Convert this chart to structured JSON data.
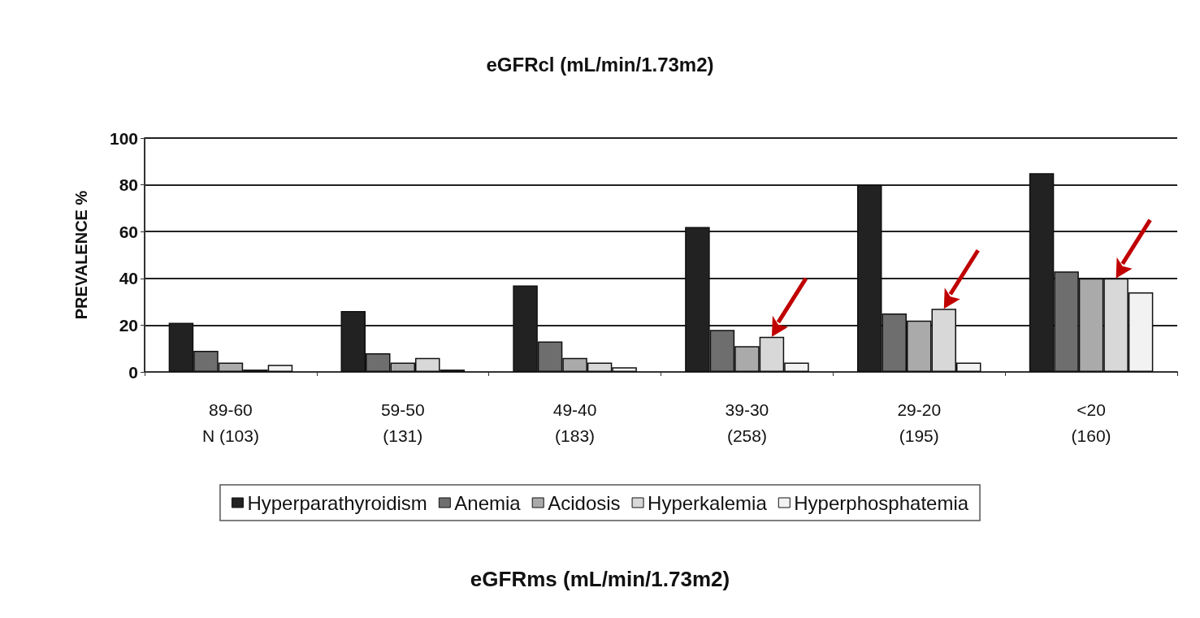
{
  "chart_data": {
    "type": "bar",
    "title": "eGFRcl (mL/min/1.73m2)",
    "annotations": [
      "eGFRms (mL/min/1.73m2)"
    ],
    "ylabel": "PREVALENCE %",
    "categories": [
      "89-60\nN (103)",
      "59-50\n(131)",
      "49-40\n(183)",
      "39-30\n(258)",
      "29-20\n(195)",
      "<20\n(160)"
    ],
    "series": [
      {
        "name": "Hyperparathyroidism",
        "color": "#222222",
        "values": [
          21,
          26,
          37,
          62,
          80,
          85
        ]
      },
      {
        "name": "Anemia",
        "color": "#6e6e6e",
        "values": [
          9,
          8,
          13,
          18,
          25,
          43
        ]
      },
      {
        "name": "Acidosis",
        "color": "#aaaaaa",
        "values": [
          4,
          4,
          6,
          11,
          22,
          40
        ]
      },
      {
        "name": "Hyperkalemia",
        "color": "#d8d8d8",
        "values": [
          1,
          6,
          4,
          15,
          27,
          40
        ]
      },
      {
        "name": "Hyperphosphatemia",
        "color": "#f2f2f2",
        "values": [
          3,
          1,
          2,
          4,
          4,
          34
        ]
      }
    ],
    "ylim": [
      0,
      100
    ],
    "yticks": [
      0,
      20,
      40,
      60,
      80,
      100
    ],
    "grid": "y",
    "legend": "bottom"
  }
}
